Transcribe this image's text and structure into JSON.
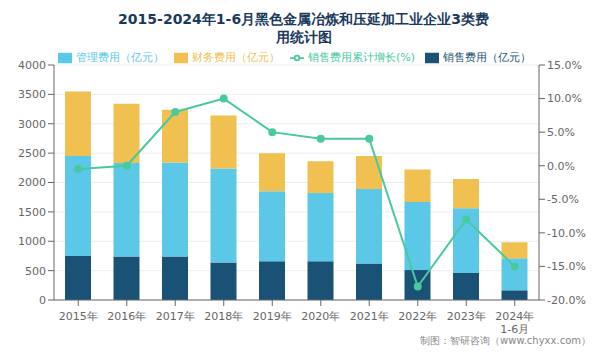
{
  "chart_data": {
    "type": "bar",
    "title": "2015-2024年1-6月黑色金属冶炼和压延加工业企业3类费\n用统计图",
    "annotations": [
      "制图：智研咨询（www.chyxx.com）"
    ],
    "categories": [
      "2015年",
      "2016年",
      "2017年",
      "2018年",
      "2019年",
      "2020年",
      "2021年",
      "2022年",
      "2023年",
      "2024年\n1-6月"
    ],
    "stacked": true,
    "grid": true,
    "legend": "top",
    "series": [
      {
        "name": "销售费用（亿元）",
        "type": "bar",
        "color": "#1a5276",
        "values": [
          750,
          740,
          740,
          640,
          660,
          660,
          620,
          510,
          460,
          165
        ]
      },
      {
        "name": "管理费用（亿元）",
        "type": "bar",
        "color": "#5bc8e8",
        "values": [
          1700,
          1590,
          1600,
          1600,
          1190,
          1160,
          1270,
          1160,
          1100,
          545
        ]
      },
      {
        "name": "财务费用（亿元）",
        "type": "bar",
        "color": "#f0c050",
        "values": [
          1100,
          1010,
          900,
          900,
          650,
          540,
          560,
          550,
          500,
          275
        ]
      },
      {
        "name": "销售费用累计增长(%)",
        "type": "line",
        "axis": "y2",
        "marker": "circle",
        "color": "#48c9a0",
        "values": [
          -0.5,
          0.0,
          8.0,
          10.0,
          5.0,
          4.0,
          4.0,
          -18.0,
          -8.0,
          -15.0
        ]
      }
    ],
    "ylim": [
      0,
      4000
    ],
    "yticks": [
      0,
      500,
      1000,
      1500,
      2000,
      2500,
      3000,
      3500,
      4000
    ],
    "y2lim": [
      -20.0,
      15.0
    ],
    "y2ticks": [
      {
        "value": -20.0,
        "label": "-20.0%"
      },
      {
        "value": -15.0,
        "label": "-15.0%"
      },
      {
        "value": -10.0,
        "label": "-10.0%"
      },
      {
        "value": -5.0,
        "label": "-5.0%"
      },
      {
        "value": 0.0,
        "label": "0.0%"
      },
      {
        "value": 5.0,
        "label": "5.0%"
      },
      {
        "value": 10.0,
        "label": "10.0%"
      },
      {
        "value": 15.0,
        "label": "15.0%"
      }
    ]
  }
}
